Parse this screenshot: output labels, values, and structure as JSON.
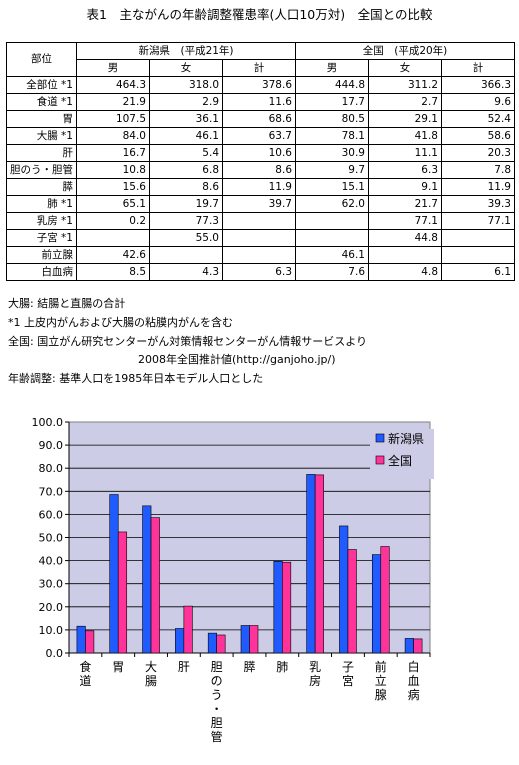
{
  "title": "表1　主ながんの年齢調整罹患率(人口10万対)　全国との比較",
  "table": {
    "header_part": "部位",
    "group1": "新潟県　(平成21年)",
    "group2": "全国　(平成20年)",
    "sub": [
      "男",
      "女",
      "計",
      "男",
      "女",
      "計"
    ],
    "rows": [
      {
        "label": "全部位 *1",
        "v": [
          "464.3",
          "318.0",
          "378.6",
          "444.8",
          "311.2",
          "366.3"
        ]
      },
      {
        "label": "食道 *1",
        "v": [
          "21.9",
          "2.9",
          "11.6",
          "17.7",
          "2.7",
          "9.6"
        ]
      },
      {
        "label": "胃",
        "v": [
          "107.5",
          "36.1",
          "68.6",
          "80.5",
          "29.1",
          "52.4"
        ]
      },
      {
        "label": "大腸 *1",
        "v": [
          "84.0",
          "46.1",
          "63.7",
          "78.1",
          "41.8",
          "58.6"
        ]
      },
      {
        "label": "肝",
        "v": [
          "16.7",
          "5.4",
          "10.6",
          "30.9",
          "11.1",
          "20.3"
        ]
      },
      {
        "label": "胆のう・胆管",
        "v": [
          "10.8",
          "6.8",
          "8.6",
          "9.7",
          "6.3",
          "7.8"
        ]
      },
      {
        "label": "膵",
        "v": [
          "15.6",
          "8.6",
          "11.9",
          "15.1",
          "9.1",
          "11.9"
        ]
      },
      {
        "label": "肺 *1",
        "v": [
          "65.1",
          "19.7",
          "39.7",
          "62.0",
          "21.7",
          "39.3"
        ]
      },
      {
        "label": "乳房 *1",
        "v": [
          "0.2",
          "77.3",
          "",
          "",
          "77.1",
          "77.1"
        ]
      },
      {
        "label": "子宮 *1",
        "v": [
          "",
          "55.0",
          "",
          "",
          "44.8",
          ""
        ]
      },
      {
        "label": "前立腺",
        "v": [
          "42.6",
          "",
          "",
          "46.1",
          "",
          ""
        ]
      },
      {
        "label": "白血病",
        "v": [
          "8.5",
          "4.3",
          "6.3",
          "7.6",
          "4.8",
          "6.1"
        ]
      }
    ]
  },
  "notes": {
    "n1": "大腸: 結腸と直腸の合計",
    "n2": "*1 上皮内がんおよび大腸の粘膜内がんを含む",
    "n3": "全国: 国立がん研究センターがん対策情報センターがん情報サービスより",
    "n4": "2008年全国推計値(http://ganjoho.jp/)",
    "n5": "年齢調整: 基準人口を1985年日本モデル人口とした"
  },
  "chart_data": {
    "type": "bar",
    "categories": [
      "食道",
      "胃",
      "大腸",
      "肝",
      "胆のう・胆管",
      "膵",
      "肺",
      "乳房",
      "子宮",
      "前立腺",
      "白血病"
    ],
    "series": [
      {
        "name": "新潟県",
        "values": [
          11.6,
          68.6,
          63.7,
          10.6,
          8.6,
          11.9,
          39.7,
          77.3,
          55.0,
          42.6,
          6.3
        ],
        "color": "#1f5bff"
      },
      {
        "name": "全国",
        "values": [
          9.6,
          52.4,
          58.6,
          20.3,
          7.8,
          11.9,
          39.3,
          77.1,
          44.8,
          46.1,
          6.1
        ],
        "color": "#ff3399"
      }
    ],
    "ylim": [
      0,
      100
    ],
    "yticks": [
      "0.0",
      "10.0",
      "20.0",
      "30.0",
      "40.0",
      "50.0",
      "60.0",
      "70.0",
      "80.0",
      "90.0",
      "100.0"
    ],
    "plot_bg": "#cccce6",
    "grid": true,
    "legend": "top-right"
  }
}
